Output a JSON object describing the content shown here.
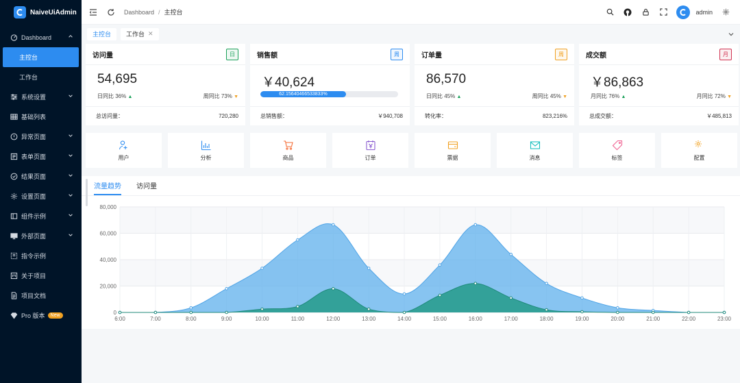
{
  "app": {
    "title": "NaiveUiAdmin"
  },
  "sidebar": {
    "items": [
      {
        "label": "Dashboard",
        "icon": "dashboard-icon",
        "expanded": true
      },
      {
        "label": "主控台",
        "sub": true,
        "active": true
      },
      {
        "label": "工作台",
        "sub": true
      },
      {
        "label": "系统设置",
        "icon": "sliders-icon",
        "chevron": true
      },
      {
        "label": "基础列表",
        "icon": "table-icon"
      },
      {
        "label": "异常页面",
        "icon": "alert-icon",
        "chevron": true
      },
      {
        "label": "表单页面",
        "icon": "form-icon",
        "chevron": true
      },
      {
        "label": "结果页面",
        "icon": "check-circle-icon",
        "chevron": true
      },
      {
        "label": "设置页面",
        "icon": "gear-icon",
        "chevron": true
      },
      {
        "label": "组件示例",
        "icon": "component-icon",
        "chevron": true
      },
      {
        "label": "外部页面",
        "icon": "desktop-icon",
        "chevron": true
      },
      {
        "label": "指令示例",
        "icon": "directive-icon"
      },
      {
        "label": "关于项目",
        "icon": "project-icon"
      },
      {
        "label": "项目文档",
        "icon": "document-icon"
      },
      {
        "label": "Pro 版本",
        "icon": "diamond-icon",
        "badge": "New"
      }
    ]
  },
  "header": {
    "breadcrumb": [
      "Dashboard",
      "主控台"
    ],
    "username": "admin"
  },
  "tabs": [
    {
      "label": "主控台",
      "active": true
    },
    {
      "label": "工作台",
      "closable": true
    }
  ],
  "stats": [
    {
      "title": "访问量",
      "tag": "日",
      "tag_color": "#18a058",
      "value": "54,695",
      "left": "日同比 36%",
      "left_trend": "up",
      "right": "周同比 73%",
      "right_trend": "down",
      "foot_label": "总访问量：",
      "foot_value": "720,280"
    },
    {
      "title": "销售额",
      "tag": "周",
      "tag_color": "#2d8cf0",
      "value": "￥40,624",
      "progress": "62.15640466533833%",
      "progress_value": 62.15640466533833,
      "foot_label": "总销售额：",
      "foot_value": "￥940,708"
    },
    {
      "title": "订单量",
      "tag": "周",
      "tag_color": "#f0a020",
      "value": "86,570",
      "left": "日同比 45%",
      "left_trend": "up",
      "right": "周同比 45%",
      "right_trend": "down",
      "foot_label": "转化率：",
      "foot_value": "823,216%"
    },
    {
      "title": "成交额",
      "tag": "月",
      "tag_color": "#d03050",
      "value": "￥86,863",
      "left": "月同比 76%",
      "left_trend": "up",
      "right": "月同比 72%",
      "right_trend": "down",
      "foot_label": "总成交额：",
      "foot_value": "￥485,813"
    }
  ],
  "shortcuts": [
    {
      "label": "用户",
      "icon": "users-icon",
      "color": "#2d8cf0"
    },
    {
      "label": "分析",
      "icon": "bar-chart-icon",
      "color": "#2d8cf0"
    },
    {
      "label": "商品",
      "icon": "cart-icon",
      "color": "#f56c35"
    },
    {
      "label": "订单",
      "icon": "order-icon",
      "color": "#8a5cd0"
    },
    {
      "label": "票据",
      "icon": "wallet-icon",
      "color": "#f0a020"
    },
    {
      "label": "消息",
      "icon": "mail-icon",
      "color": "#19bebe"
    },
    {
      "label": "标签",
      "icon": "tag-icon",
      "color": "#f06292"
    },
    {
      "label": "配置",
      "icon": "gear-icon",
      "color": "#f0a020"
    }
  ],
  "chart_tabs": [
    "流量趋势",
    "访问量"
  ],
  "chart_data": {
    "type": "area",
    "categories": [
      "6:00",
      "7:00",
      "8:00",
      "9:00",
      "10:00",
      "11:00",
      "12:00",
      "13:00",
      "14:00",
      "15:00",
      "16:00",
      "17:00",
      "18:00",
      "19:00",
      "20:00",
      "21:00",
      "22:00",
      "23:00"
    ],
    "series": [
      {
        "values": [
          0,
          0,
          3500,
          18000,
          33500,
          55000,
          66500,
          33500,
          14000,
          36000,
          66500,
          44000,
          22000,
          11000,
          3500,
          1500,
          0,
          0
        ],
        "color": "#5fb0ec"
      },
      {
        "values": [
          0,
          0,
          0,
          0,
          2500,
          4500,
          18000,
          2500,
          0,
          13000,
          22000,
          11000,
          2000,
          500,
          0,
          0,
          0,
          0
        ],
        "color": "#2a9d8f"
      }
    ],
    "yticks": [
      "0",
      "20,000",
      "40,000",
      "60,000",
      "80,000"
    ],
    "ylim": [
      0,
      80000
    ],
    "grid": true
  }
}
